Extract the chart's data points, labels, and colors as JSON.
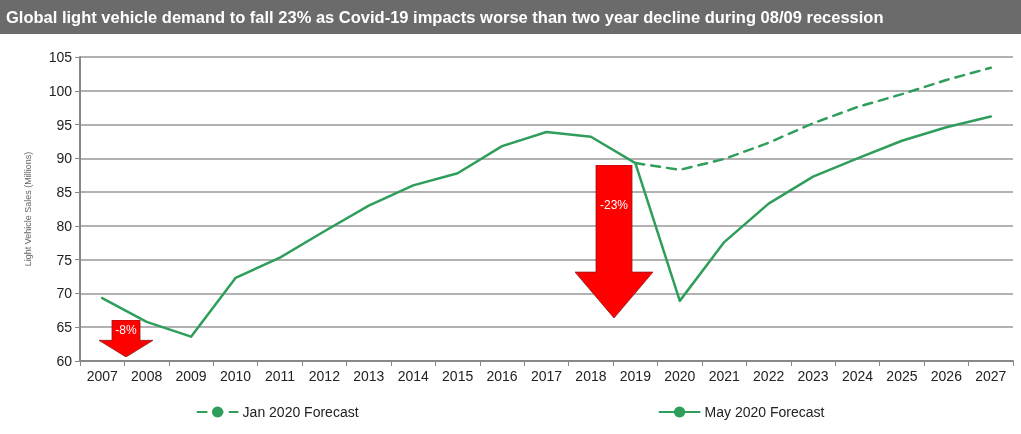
{
  "chart_data": {
    "type": "line",
    "title": "Global light vehicle demand to fall 23% as Covid-19 impacts worse than two year decline during 08/09 recession",
    "ylabel": "Light Vehicle Sales (Millions)",
    "categories": [
      "2007",
      "2008",
      "2009",
      "2010",
      "2011",
      "2012",
      "2013",
      "2014",
      "2015",
      "2016",
      "2017",
      "2018",
      "2019",
      "2020",
      "2021",
      "2022",
      "2023",
      "2024",
      "2025",
      "2026",
      "2027"
    ],
    "series": [
      {
        "name": "Jan 2020 Forecast",
        "color": "#2e9e5a",
        "line_style": "dashed",
        "values": [
          null,
          null,
          null,
          null,
          null,
          null,
          null,
          null,
          null,
          null,
          null,
          null,
          89.3,
          88.3,
          89.9,
          92.3,
          95.2,
          97.6,
          99.5,
          101.6,
          103.4
        ]
      },
      {
        "name": "May 2020 Forecast",
        "color": "#2e9e5a",
        "line_style": "solid",
        "values": [
          69.3,
          65.8,
          63.6,
          72.3,
          75.3,
          79.2,
          83.0,
          86.0,
          87.8,
          91.8,
          93.9,
          93.2,
          89.3,
          68.9,
          77.6,
          83.3,
          87.3,
          90.0,
          92.6,
          94.6,
          96.2
        ]
      }
    ],
    "ylim": [
      60,
      105
    ],
    "yticks": [
      60,
      65,
      70,
      75,
      80,
      85,
      90,
      95,
      100,
      105
    ],
    "grid": "y",
    "legend": "bottom",
    "marker": "none",
    "annotations": [
      "-8%",
      "-23%"
    ]
  }
}
